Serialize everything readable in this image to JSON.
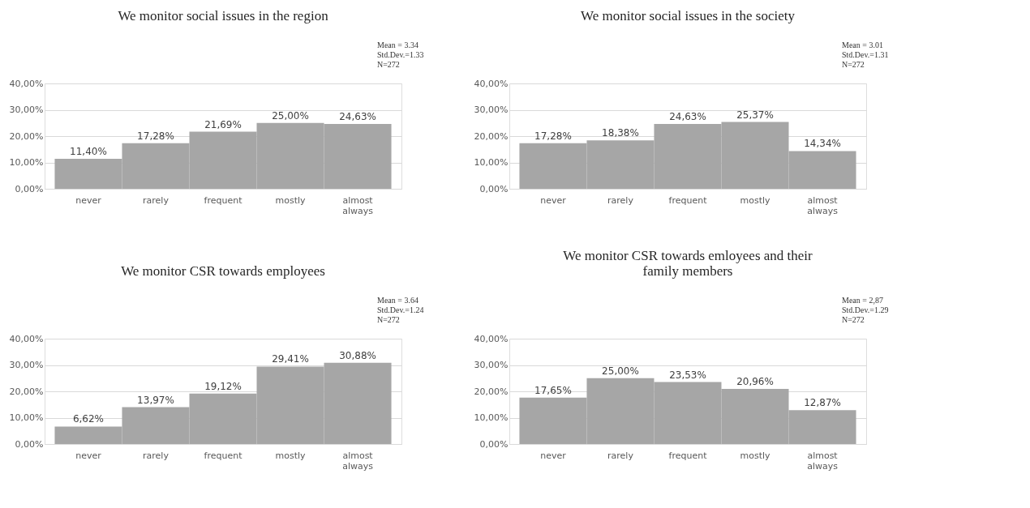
{
  "chart_data": [
    {
      "type": "bar",
      "title": "We monitor  social issues in the region",
      "categories": [
        "never",
        "rarely",
        "frequent",
        "mostly",
        "almost always"
      ],
      "values": [
        11.4,
        17.28,
        21.69,
        25.0,
        24.63
      ],
      "value_labels": [
        "11,40%",
        "17,28%",
        "21,69%",
        "25,00%",
        "24,63%"
      ],
      "color": "#a6a6a6",
      "ylim": [
        0,
        40
      ],
      "yticks": [
        {
          "value": 0,
          "label": "0,00%"
        },
        {
          "value": 10,
          "label": "10,00%"
        },
        {
          "value": 20,
          "label": "20,00%"
        },
        {
          "value": 30,
          "label": "30,00%"
        },
        {
          "value": 40,
          "label": "40,00%"
        }
      ],
      "grid": "y",
      "annotations": [
        "Mean = 3.34",
        "Std.Dev.=1.33",
        "N=272"
      ]
    },
    {
      "type": "bar",
      "title": "We monitor  social issues in the society",
      "categories": [
        "never",
        "rarely",
        "frequent",
        "mostly",
        "almost always"
      ],
      "values": [
        17.28,
        18.38,
        24.63,
        25.37,
        14.34
      ],
      "value_labels": [
        "17,28%",
        "18,38%",
        "24,63%",
        "25,37%",
        "14,34%"
      ],
      "color": "#a6a6a6",
      "ylim": [
        0,
        40
      ],
      "yticks": [
        {
          "value": 0,
          "label": "0,00%"
        },
        {
          "value": 10,
          "label": "10,00%"
        },
        {
          "value": 20,
          "label": "20,00%"
        },
        {
          "value": 30,
          "label": "30,00%"
        },
        {
          "value": 40,
          "label": "40,00%"
        }
      ],
      "grid": "y",
      "annotations": [
        "Mean = 3.01",
        "Std.Dev.=1.31",
        "N=272"
      ]
    },
    {
      "type": "bar",
      "title": "We monitor  CSR towards employees",
      "categories": [
        "never",
        "rarely",
        "frequent",
        "mostly",
        "almost always"
      ],
      "values": [
        6.62,
        13.97,
        19.12,
        29.41,
        30.88
      ],
      "value_labels": [
        "6,62%",
        "13,97%",
        "19,12%",
        "29,41%",
        "30,88%"
      ],
      "color": "#a6a6a6",
      "ylim": [
        0,
        40
      ],
      "yticks": [
        {
          "value": 0,
          "label": "0,00%"
        },
        {
          "value": 10,
          "label": "10,00%"
        },
        {
          "value": 20,
          "label": "20,00%"
        },
        {
          "value": 30,
          "label": "30,00%"
        },
        {
          "value": 40,
          "label": "40,00%"
        }
      ],
      "grid": "y",
      "annotations": [
        "Mean = 3.64",
        "Std.Dev.=1.24",
        "N=272"
      ]
    },
    {
      "type": "bar",
      "title": "We monitor  CSR towards emloyees and their family members",
      "categories": [
        "never",
        "rarely",
        "frequent",
        "mostly",
        "almost always"
      ],
      "values": [
        17.65,
        25.0,
        23.53,
        20.96,
        12.87
      ],
      "value_labels": [
        "17,65%",
        "25,00%",
        "23,53%",
        "20,96%",
        "12,87%"
      ],
      "color": "#a6a6a6",
      "ylim": [
        0,
        40
      ],
      "yticks": [
        {
          "value": 0,
          "label": "0,00%"
        },
        {
          "value": 10,
          "label": "10,00%"
        },
        {
          "value": 20,
          "label": "20,00%"
        },
        {
          "value": 30,
          "label": "30,00%"
        },
        {
          "value": 40,
          "label": "40,00%"
        }
      ],
      "grid": "y",
      "annotations": [
        "Mean = 2,87",
        "Std.Dev.=1.29",
        "N=272"
      ]
    }
  ]
}
